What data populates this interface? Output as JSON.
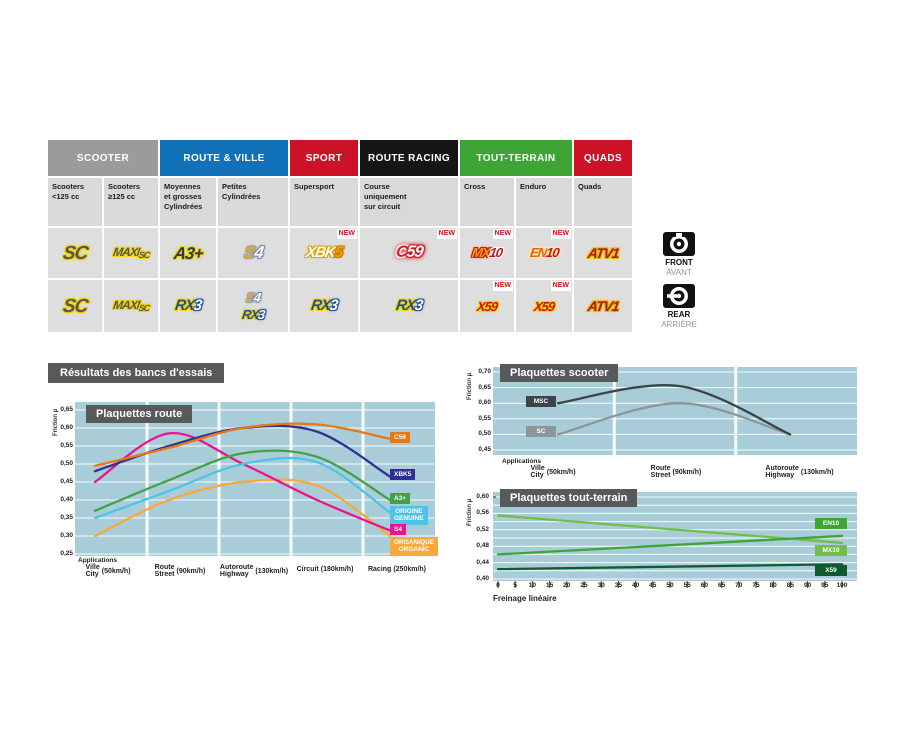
{
  "colors": {
    "panel": "#a8cdd9",
    "grid": "#ffffff",
    "title_box": "#58595b",
    "accent_red": "#cc1226",
    "accent_blue": "#1272b9",
    "accent_green": "#3da435",
    "accent_gray": "#9b9b9b"
  },
  "table": {
    "groups": [
      {
        "label": "SCOOTER"
      },
      {
        "label": "ROUTE & VILLE"
      },
      {
        "label": "SPORT"
      },
      {
        "label": "ROUTE RACING"
      },
      {
        "label": "TOUT-TERRAIN"
      },
      {
        "label": "QUADS"
      }
    ],
    "columns": [
      "Scooters\n<125 cc",
      "Scooters\n≥125 cc",
      "Moyennes\net grosses\nCylindrées",
      "Petites\nCylindrées",
      "Supersport",
      "Course\nuniquement\nsur circuit",
      "Cross",
      "Enduro",
      "Quads"
    ],
    "new_label": "NEW"
  },
  "products": {
    "sc": {
      "text": "SC"
    },
    "maxisc": {
      "p1": "MAXI",
      "p2": "SC"
    },
    "a3": {
      "text": "A3+"
    },
    "s4": {
      "p1": "S",
      "p2": "4"
    },
    "xbk5": {
      "p1": "XBK",
      "p2": "5"
    },
    "c59": {
      "p1": "C",
      "p2": "59"
    },
    "mx10": {
      "p1": "MX",
      "p2": "10"
    },
    "en10": {
      "p1": "EN",
      "p2": "10"
    },
    "atv1": {
      "text": "ATV1"
    },
    "rx3": {
      "p1": "RX",
      "p2": "3"
    },
    "x59": {
      "text": "X59"
    }
  },
  "sides": {
    "front_en": "FRONT",
    "front_fr": "AVANT",
    "rear_en": "REAR",
    "rear_fr": "ARRIÈRE"
  },
  "section_title": "Résultats des bancs d'essais",
  "chart_data": [
    {
      "id": "route",
      "type": "line",
      "title": "Plaquettes route",
      "ylabel": "Friction µ",
      "applications_label": "Applications",
      "ylim": [
        0.25,
        0.65
      ],
      "yticks": [
        "0,65",
        "0,60",
        "0,55",
        "0,50",
        "0,45",
        "0,40",
        "0,35",
        "0,30",
        "0,25"
      ],
      "categories": [
        {
          "fr": "Ville",
          "en": "City",
          "speed": "(50km/h)"
        },
        {
          "fr": "Route",
          "en": "Street",
          "speed": "(90km/h)"
        },
        {
          "fr": "Autoroute",
          "en": "Highway",
          "speed": "(130km/h)"
        },
        {
          "fr": "Circuit",
          "en": "",
          "speed": "(180km/h)"
        },
        {
          "fr": "Racing",
          "en": "",
          "speed": "(250km/h)"
        }
      ],
      "legend_position": "right",
      "grid": true,
      "series": [
        {
          "name": "C59",
          "color": "#e87717",
          "values": [
            0.495,
            0.545,
            0.6,
            0.61,
            0.57
          ]
        },
        {
          "name": "XBK5",
          "color": "#2e3192",
          "values": [
            0.48,
            0.55,
            0.6,
            0.59,
            0.465
          ]
        },
        {
          "name": "A3+",
          "color": "#43a047",
          "values": [
            0.37,
            0.455,
            0.53,
            0.52,
            0.4
          ]
        },
        {
          "name": "ORIGINE\nGENUINE",
          "color": "#4fc3e7",
          "values": [
            0.35,
            0.425,
            0.5,
            0.505,
            0.365
          ]
        },
        {
          "name": "S4",
          "color": "#ec138c",
          "values": [
            0.45,
            0.585,
            0.5,
            0.4,
            0.315
          ]
        },
        {
          "name": "ORGANIQUE\nORGANIC",
          "color": "#f9a83a",
          "values": [
            0.3,
            0.4,
            0.45,
            0.44,
            0.3
          ]
        }
      ]
    },
    {
      "id": "scooter",
      "type": "line",
      "title": "Plaquettes scooter",
      "ylabel": "Friction µ",
      "applications_label": "Applications",
      "ylim": [
        0.45,
        0.7
      ],
      "yticks": [
        "0,70",
        "0,65",
        "0,60",
        "0,55",
        "0,50",
        "0,45"
      ],
      "categories": [
        {
          "fr": "Ville",
          "en": "City",
          "speed": "(50km/h)"
        },
        {
          "fr": "Route",
          "en": "Street",
          "speed": "(90km/h)"
        },
        {
          "fr": "Autoroute",
          "en": "Highway",
          "speed": "(130km/h)"
        }
      ],
      "legend_position": "left-on-lines",
      "grid": true,
      "series": [
        {
          "name": "MSC",
          "color": "#3a4449",
          "values": [
            0.6,
            0.655,
            0.5
          ]
        },
        {
          "name": "SC",
          "color": "#8d9598",
          "values": [
            0.5,
            0.6,
            0.5
          ]
        }
      ]
    },
    {
      "id": "tout-terrain",
      "type": "line",
      "title": "Plaquettes tout-terrain",
      "ylabel": "Friction µ",
      "xlabel": "Freinage linéaire",
      "ylim": [
        0.4,
        0.6
      ],
      "yticks": [
        "0,60",
        "0,56",
        "0,52",
        "0,48",
        "0,44",
        "0,40"
      ],
      "x": [
        0,
        100
      ],
      "xticks": [
        0,
        5,
        10,
        15,
        20,
        25,
        30,
        35,
        40,
        45,
        50,
        55,
        60,
        65,
        70,
        75,
        80,
        85,
        90,
        95,
        100
      ],
      "legend_position": "right",
      "grid": true,
      "series": [
        {
          "name": "EN10",
          "color": "#3fa535",
          "values": [
            0.46,
            0.505
          ]
        },
        {
          "name": "MX10",
          "color": "#71bf44",
          "values": [
            0.555,
            0.488
          ]
        },
        {
          "name": "X59",
          "color": "#0e5b2f",
          "values": [
            0.424,
            0.436
          ]
        }
      ]
    }
  ]
}
